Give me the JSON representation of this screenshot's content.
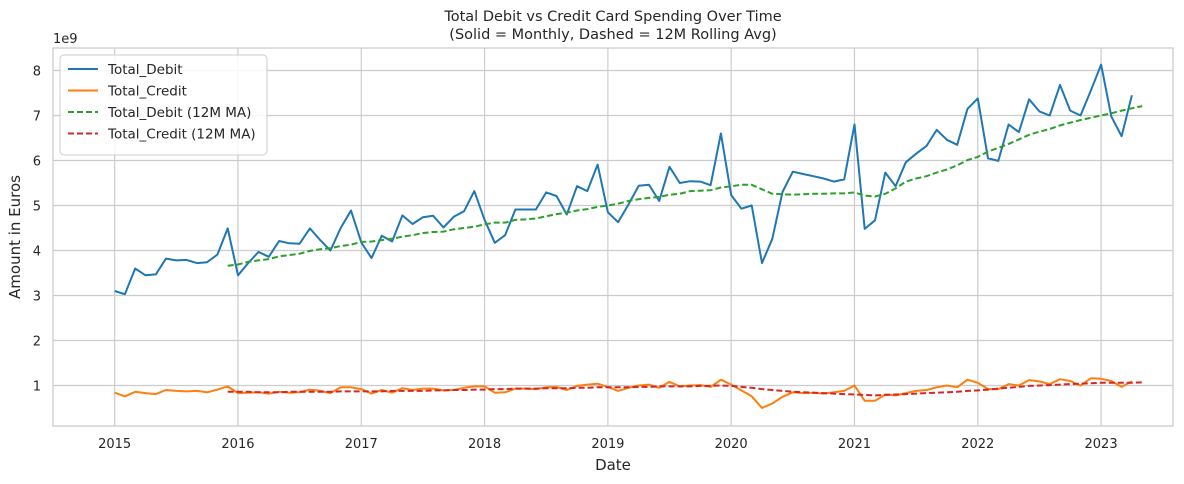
{
  "chart_data": {
    "type": "line",
    "title": "Total Debit vs Credit Card Spending Over Time",
    "subtitle": "(Solid = Monthly, Dashed = 12M Rolling Avg)",
    "xlabel": "Date",
    "ylabel": "Amount in Euros",
    "y_offset_label": "1e9",
    "xlim": [
      "2014-07",
      "2023-08"
    ],
    "ylim": [
      0.1,
      8.5
    ],
    "y_scale_note": "values in units of 1e9 euros",
    "x_ticks": [
      "2015",
      "2016",
      "2017",
      "2018",
      "2019",
      "2020",
      "2021",
      "2022",
      "2023"
    ],
    "y_ticks": [
      "1",
      "2",
      "3",
      "4",
      "5",
      "6",
      "7",
      "8"
    ],
    "grid": true,
    "legend_position": "top-left",
    "x_start": "2015-01",
    "series": [
      {
        "name": "Total_Debit",
        "color": "#1f77b4",
        "style": "solid",
        "start": "2015-01",
        "values": [
          3.1,
          3.03,
          3.6,
          3.45,
          3.47,
          3.82,
          3.78,
          3.79,
          3.72,
          3.74,
          3.91,
          4.49,
          3.45,
          3.72,
          3.97,
          3.86,
          4.21,
          4.16,
          4.15,
          4.49,
          4.23,
          4.0,
          4.5,
          4.89,
          4.18,
          3.83,
          4.33,
          4.2,
          4.78,
          4.59,
          4.74,
          4.77,
          4.51,
          4.75,
          4.87,
          5.32,
          4.68,
          4.17,
          4.34,
          4.91,
          4.91,
          4.91,
          5.29,
          5.21,
          4.8,
          5.43,
          5.32,
          5.91,
          4.85,
          4.63,
          5.02,
          5.44,
          5.46,
          5.1,
          5.86,
          5.5,
          5.54,
          5.53,
          5.45,
          6.6,
          5.23,
          4.93,
          5.0,
          3.72,
          4.26,
          5.3,
          5.75,
          5.7,
          5.65,
          5.6,
          5.53,
          5.58,
          6.8,
          4.48,
          4.67,
          5.73,
          5.43,
          5.96,
          6.15,
          6.32,
          6.68,
          6.46,
          6.35,
          7.15,
          7.38,
          6.05,
          5.99,
          6.8,
          6.63,
          7.36,
          7.09,
          7.0,
          7.68,
          7.11,
          7.0,
          7.55,
          8.13,
          6.98,
          6.54,
          7.45
        ]
      },
      {
        "name": "Total_Credit",
        "color": "#ff7f0e",
        "style": "solid",
        "start": "2015-01",
        "values": [
          0.84,
          0.76,
          0.86,
          0.83,
          0.81,
          0.9,
          0.88,
          0.87,
          0.88,
          0.85,
          0.91,
          0.98,
          0.83,
          0.84,
          0.85,
          0.82,
          0.86,
          0.84,
          0.85,
          0.91,
          0.88,
          0.83,
          0.96,
          0.96,
          0.92,
          0.82,
          0.9,
          0.84,
          0.94,
          0.9,
          0.93,
          0.93,
          0.89,
          0.9,
          0.95,
          0.98,
          0.98,
          0.84,
          0.85,
          0.93,
          0.93,
          0.92,
          0.96,
          0.97,
          0.9,
          0.99,
          1.02,
          1.04,
          0.97,
          0.88,
          0.95,
          1.0,
          1.02,
          0.95,
          1.08,
          0.98,
          1.0,
          1.01,
          0.97,
          1.13,
          1.02,
          0.89,
          0.76,
          0.5,
          0.6,
          0.75,
          0.85,
          0.83,
          0.84,
          0.82,
          0.85,
          0.88,
          1.0,
          0.66,
          0.66,
          0.8,
          0.78,
          0.83,
          0.88,
          0.9,
          0.96,
          1.0,
          0.96,
          1.13,
          1.06,
          0.92,
          0.92,
          1.03,
          1.0,
          1.12,
          1.09,
          1.03,
          1.14,
          1.1,
          1.0,
          1.16,
          1.15,
          1.1,
          0.97,
          1.09
        ]
      },
      {
        "name": "Total_Debit (12M MA)",
        "color": "#2ca02c",
        "style": "dashed",
        "start": "2015-12",
        "values": [
          3.66,
          3.69,
          3.75,
          3.78,
          3.81,
          3.87,
          3.9,
          3.93,
          3.99,
          4.03,
          4.05,
          4.1,
          4.13,
          4.19,
          4.2,
          4.23,
          4.26,
          4.31,
          4.34,
          4.39,
          4.41,
          4.42,
          4.47,
          4.5,
          4.53,
          4.58,
          4.62,
          4.62,
          4.68,
          4.69,
          4.71,
          4.76,
          4.81,
          4.84,
          4.89,
          4.92,
          4.97,
          5.0,
          5.04,
          5.1,
          5.14,
          5.17,
          5.19,
          5.24,
          5.26,
          5.32,
          5.33,
          5.34,
          5.4,
          5.43,
          5.46,
          5.46,
          5.36,
          5.26,
          5.25,
          5.24,
          5.25,
          5.26,
          5.26,
          5.27,
          5.27,
          5.29,
          5.22,
          5.2,
          5.26,
          5.38,
          5.53,
          5.6,
          5.65,
          5.73,
          5.8,
          5.89,
          6.01,
          6.08,
          6.2,
          6.28,
          6.37,
          6.47,
          6.57,
          6.64,
          6.7,
          6.78,
          6.84,
          6.9,
          6.95,
          7.0,
          7.05,
          7.11,
          7.16,
          7.21
        ]
      },
      {
        "name": "Total_Credit (12M MA)",
        "color": "#d62728",
        "style": "dashed",
        "start": "2015-12",
        "values": [
          0.86,
          0.86,
          0.86,
          0.85,
          0.85,
          0.85,
          0.86,
          0.86,
          0.86,
          0.86,
          0.86,
          0.87,
          0.87,
          0.87,
          0.87,
          0.87,
          0.88,
          0.88,
          0.88,
          0.88,
          0.89,
          0.89,
          0.9,
          0.9,
          0.91,
          0.91,
          0.92,
          0.92,
          0.93,
          0.93,
          0.93,
          0.94,
          0.94,
          0.94,
          0.95,
          0.95,
          0.96,
          0.96,
          0.96,
          0.96,
          0.97,
          0.97,
          0.98,
          0.98,
          0.98,
          0.98,
          0.99,
          0.99,
          1.0,
          0.99,
          0.97,
          0.95,
          0.92,
          0.9,
          0.88,
          0.86,
          0.85,
          0.84,
          0.83,
          0.82,
          0.81,
          0.8,
          0.79,
          0.78,
          0.79,
          0.8,
          0.81,
          0.82,
          0.83,
          0.84,
          0.85,
          0.86,
          0.88,
          0.89,
          0.91,
          0.93,
          0.95,
          0.97,
          0.99,
          1.0,
          1.01,
          1.02,
          1.03,
          1.04,
          1.05,
          1.06,
          1.06,
          1.06,
          1.06,
          1.07
        ]
      }
    ]
  }
}
